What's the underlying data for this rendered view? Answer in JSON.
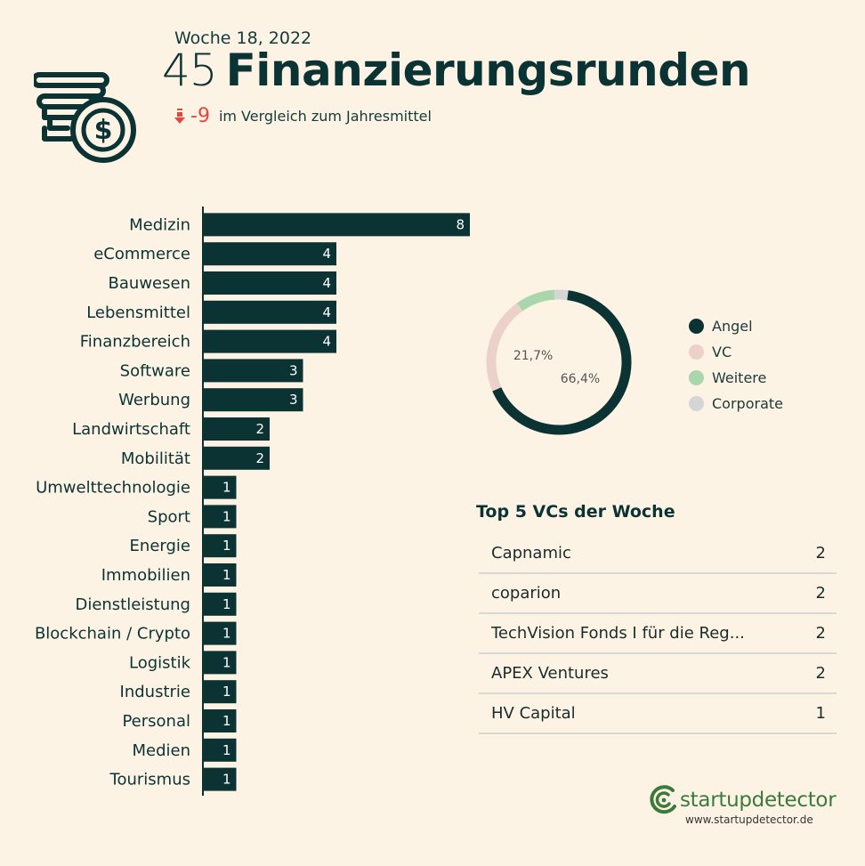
{
  "header": {
    "week": "Woche 18, 2022",
    "count": "45",
    "title": "Finanzierungsrunden",
    "delta": "-9",
    "comparison": "im Vergleich zum Jahresmittel"
  },
  "chart_data": [
    {
      "type": "bar",
      "orientation": "horizontal",
      "categories": [
        "Medizin",
        "eCommerce",
        "Bauwesen",
        "Lebensmittel",
        "Finanzbereich",
        "Software",
        "Werbung",
        "Landwirtschaft",
        "Mobilität",
        "Umwelttechnologie",
        "Sport",
        "Energie",
        "Immobilien",
        "Dienstleistung",
        "Blockchain / Crypto",
        "Logistik",
        "Industrie",
        "Personal",
        "Medien",
        "Tourismus"
      ],
      "values": [
        8,
        4,
        4,
        4,
        4,
        3,
        3,
        2,
        2,
        1,
        1,
        1,
        1,
        1,
        1,
        1,
        1,
        1,
        1,
        1
      ],
      "color": "#0c3334",
      "xlim": [
        0,
        8
      ]
    },
    {
      "type": "pie",
      "style": "donut",
      "labels": [
        "Angel",
        "VC",
        "Weitere",
        "Corporate"
      ],
      "values": [
        66.4,
        21.7,
        8.8,
        3.1
      ],
      "data_labels": [
        "66,4%",
        "21,7%",
        "",
        ""
      ],
      "colors": [
        "#0c3334",
        "#ecd1cb",
        "#a9d6ad",
        "#d5d5d5"
      ],
      "legend": "right"
    }
  ],
  "top_vcs": {
    "title": "Top 5 VCs der Woche",
    "rows": [
      {
        "name": "Capnamic",
        "count": "2"
      },
      {
        "name": "coparion",
        "count": "2"
      },
      {
        "name": "TechVision Fonds I für die Reg...",
        "count": "2"
      },
      {
        "name": "APEX Ventures",
        "count": "2"
      },
      {
        "name": "HV Capital",
        "count": "1"
      }
    ]
  },
  "brand": {
    "name": "startupdetector",
    "url": "www.startupdetector.de"
  },
  "icons": {
    "header": "coin-stack-dollar-icon",
    "delta": "arrow-down-icon",
    "brand": "startupdetector-logo-icon"
  }
}
